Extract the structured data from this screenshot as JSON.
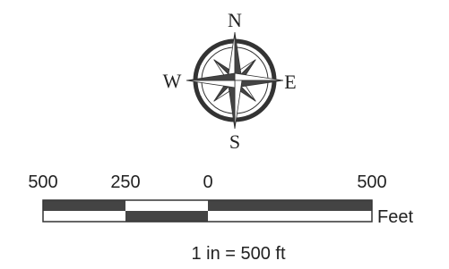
{
  "compass": {
    "north": "N",
    "east": "E",
    "south": "S",
    "west": "W"
  },
  "scale_bar": {
    "labels": [
      "500",
      "250",
      "0",
      "500"
    ],
    "unit": "Feet",
    "ratio": "1 in = 500 ft"
  }
}
